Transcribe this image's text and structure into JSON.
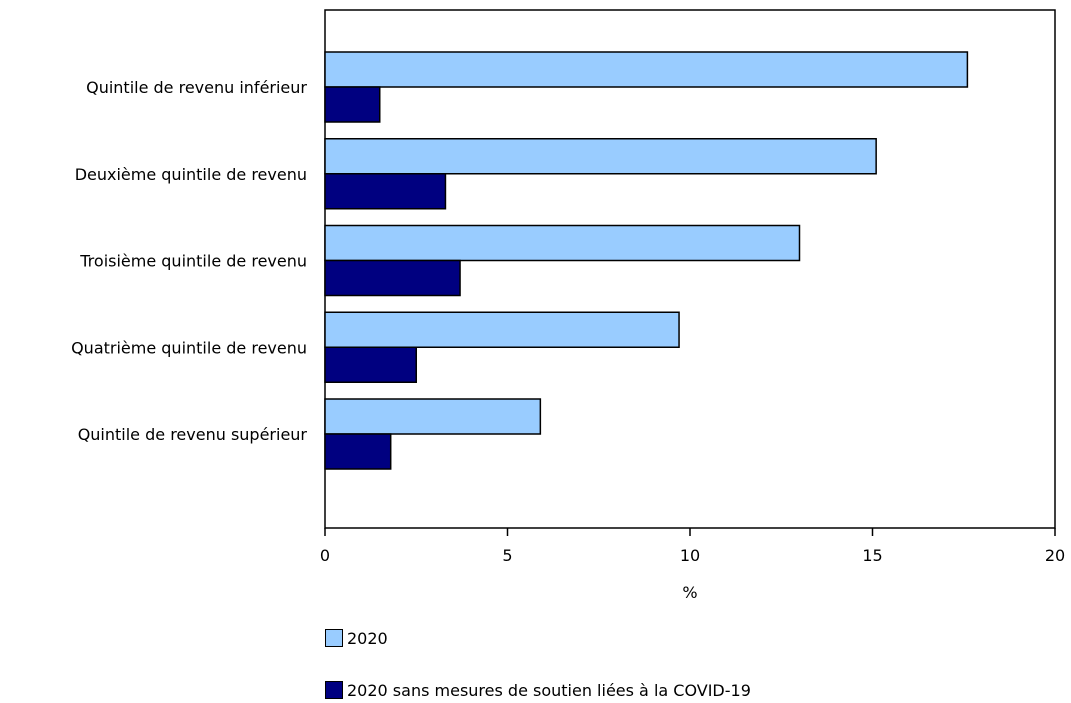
{
  "chart_data": {
    "type": "bar",
    "orientation": "horizontal",
    "categories": [
      "Quintile de revenu inférieur",
      "Deuxième quintile de revenu",
      "Troisième quintile de revenu",
      "Quatrième quintile de revenu",
      "Quintile de revenu supérieur"
    ],
    "series": [
      {
        "name": "2020",
        "values": [
          17.6,
          15.1,
          13.0,
          9.7,
          5.9
        ],
        "color": "#99ccff"
      },
      {
        "name": "2020 sans mesures de soutien liées à la COVID-19",
        "values": [
          1.5,
          3.3,
          3.7,
          2.5,
          1.8
        ],
        "color": "#000080"
      }
    ],
    "xlabel": "%",
    "xlim": [
      0,
      20
    ],
    "xticks": [
      "0",
      "5",
      "10",
      "15",
      "20"
    ],
    "grid": false,
    "legend_position": "bottom"
  }
}
